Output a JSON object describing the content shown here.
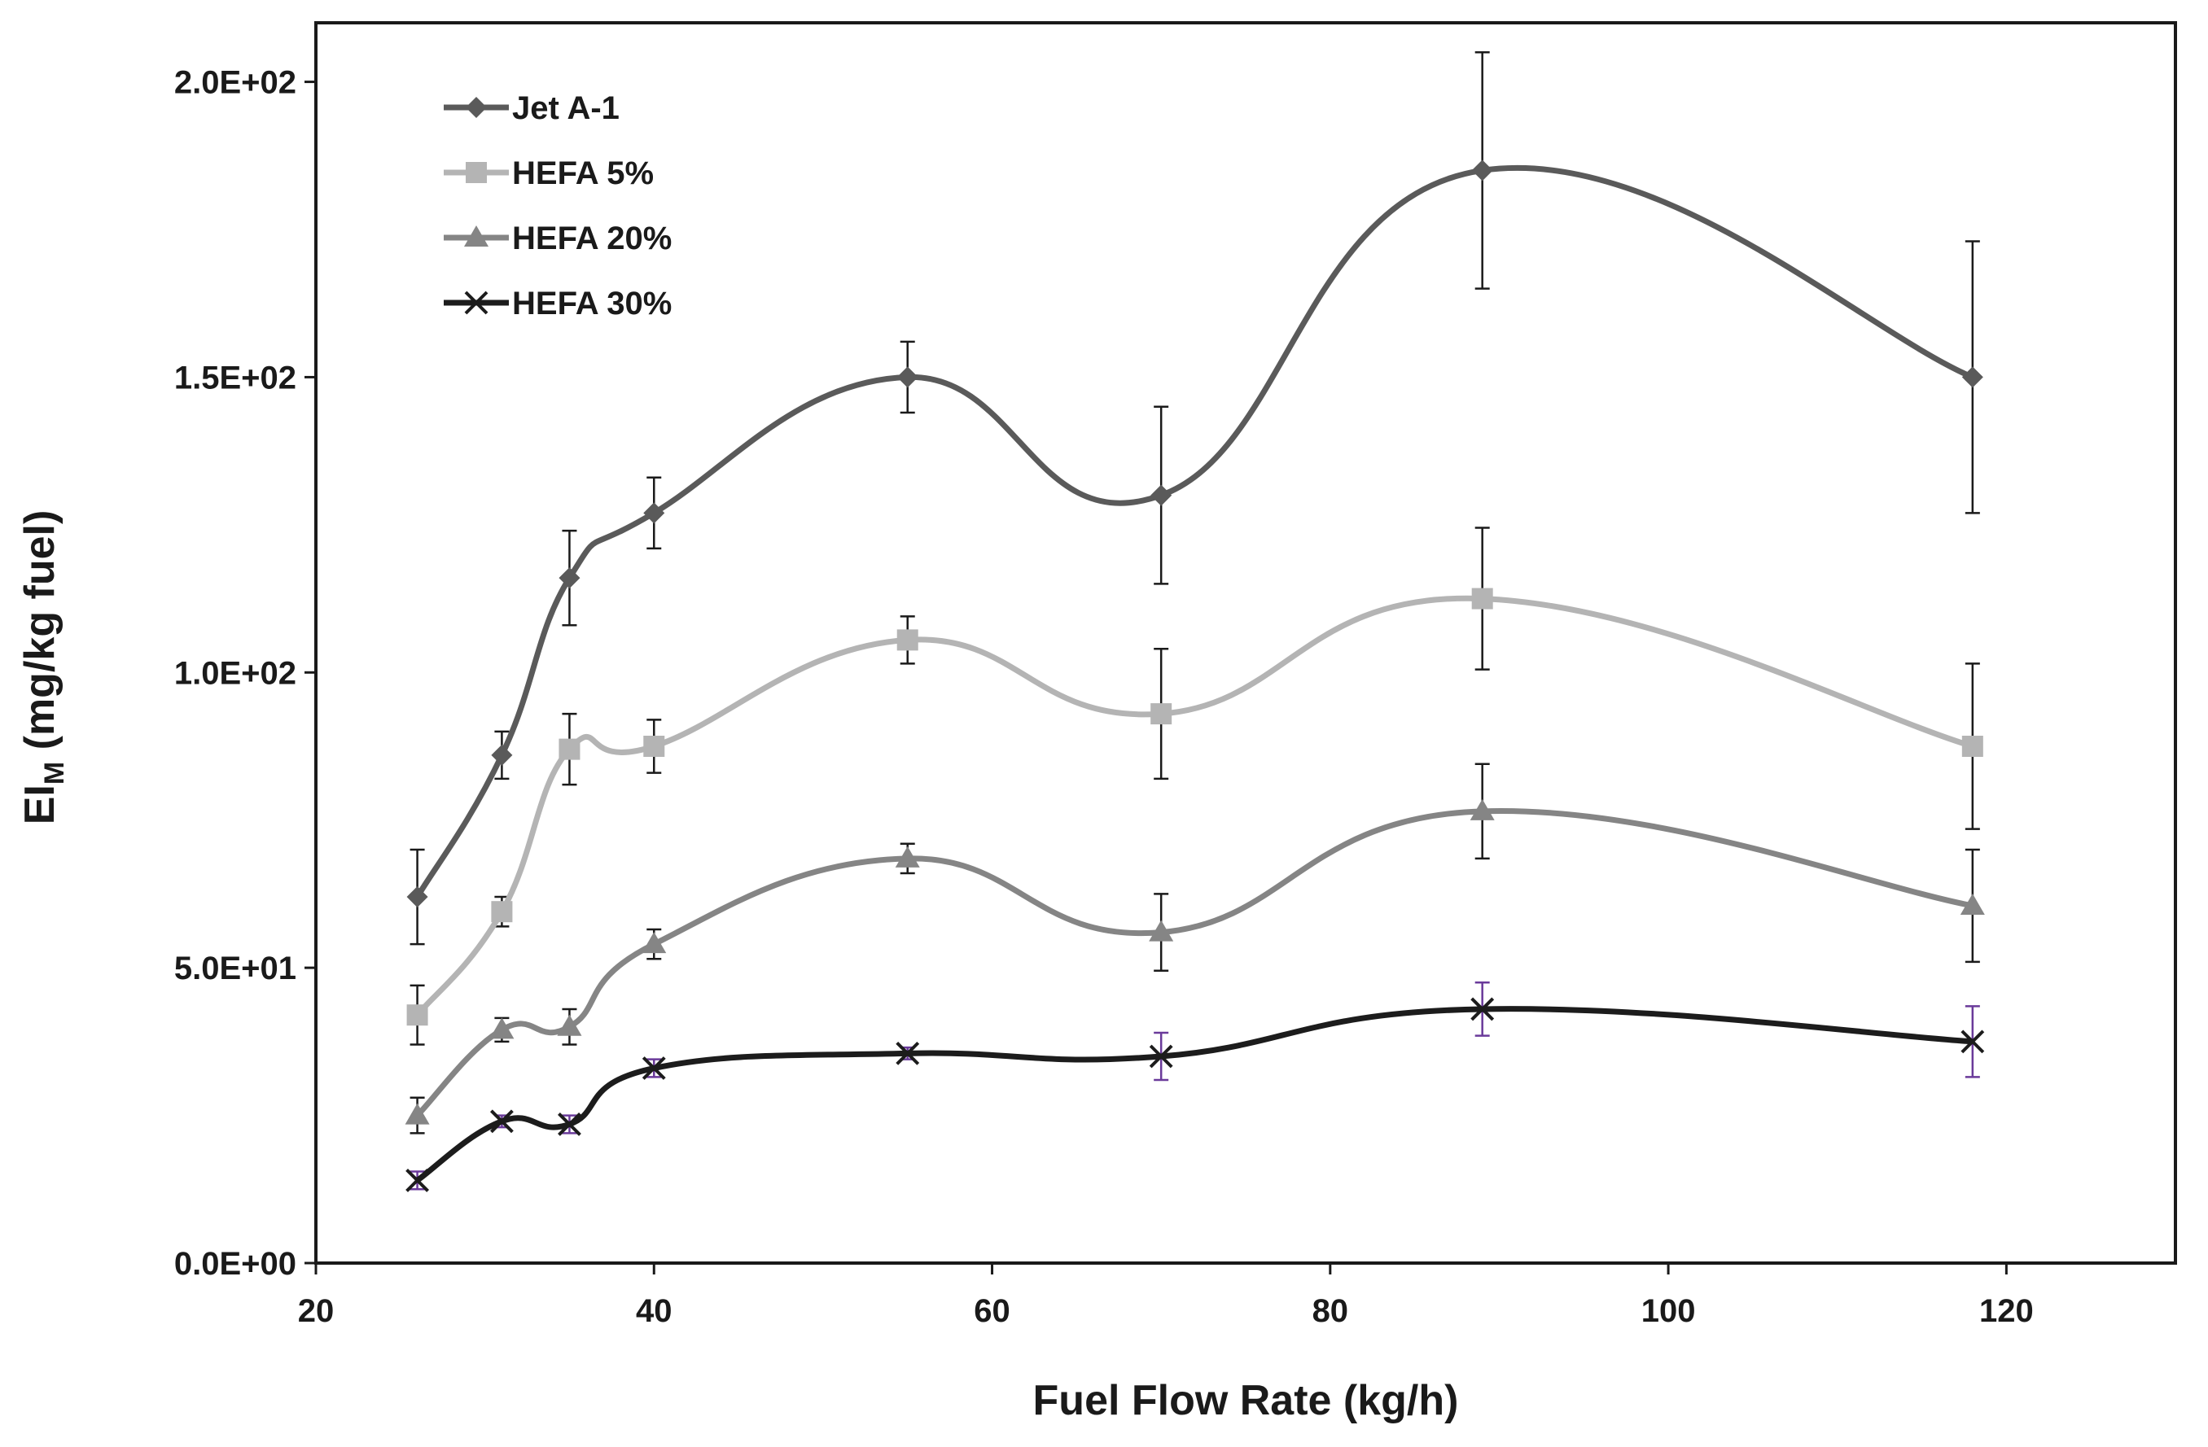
{
  "chart_data": {
    "type": "line",
    "title": "",
    "xlabel": "Fuel Flow Rate (kg/h)",
    "ylabel_main": "EI",
    "ylabel_sub": "M",
    "ylabel_rest": " (mg/kg fuel)",
    "xlim": [
      20,
      130
    ],
    "ylim": [
      0,
      210
    ],
    "x_ticks": [
      20,
      40,
      60,
      80,
      100,
      120
    ],
    "x_tick_labels": [
      "20",
      "40",
      "60",
      "80",
      "100",
      "120"
    ],
    "y_ticks": [
      0,
      50,
      100,
      150,
      200
    ],
    "y_tick_labels": [
      "0.0E+00",
      "5.0E+01",
      "1.0E+02",
      "1.5E+02",
      "2.0E+02"
    ],
    "legend_position": "top-left",
    "x": [
      26,
      31,
      35,
      40,
      55,
      70,
      89,
      118
    ],
    "series": [
      {
        "name": "Jet A-1",
        "marker": "diamond",
        "color": "#5a5a5a",
        "values": [
          62,
          86,
          116,
          127,
          150,
          130,
          185,
          150
        ],
        "errors": [
          8,
          4,
          8,
          6,
          6,
          15,
          20,
          23
        ],
        "error_color": "#1a1a1a"
      },
      {
        "name": "HEFA 5%",
        "marker": "square",
        "color": "#b4b4b4",
        "values": [
          42,
          59.5,
          87,
          87.5,
          105.5,
          93,
          112.5,
          87.5
        ],
        "errors": [
          5,
          2.5,
          6,
          4.5,
          4,
          11,
          12,
          14
        ],
        "error_color": "#1a1a1a"
      },
      {
        "name": "HEFA 20%",
        "marker": "triangle",
        "color": "#858585",
        "values": [
          25,
          39.5,
          40,
          54,
          68.5,
          56,
          76.5,
          60.5
        ],
        "errors": [
          3,
          2,
          3,
          2.5,
          2.5,
          6.5,
          8,
          9.5
        ],
        "error_color": "#1a1a1a"
      },
      {
        "name": "HEFA 30%",
        "marker": "x",
        "color": "#1c1c1c",
        "values": [
          14,
          24,
          23.5,
          33,
          35.5,
          35,
          43,
          37.5
        ],
        "errors": [
          1.5,
          1,
          1.5,
          1.5,
          1,
          4,
          4.5,
          6
        ],
        "error_color": "#6a3a9a"
      }
    ]
  }
}
